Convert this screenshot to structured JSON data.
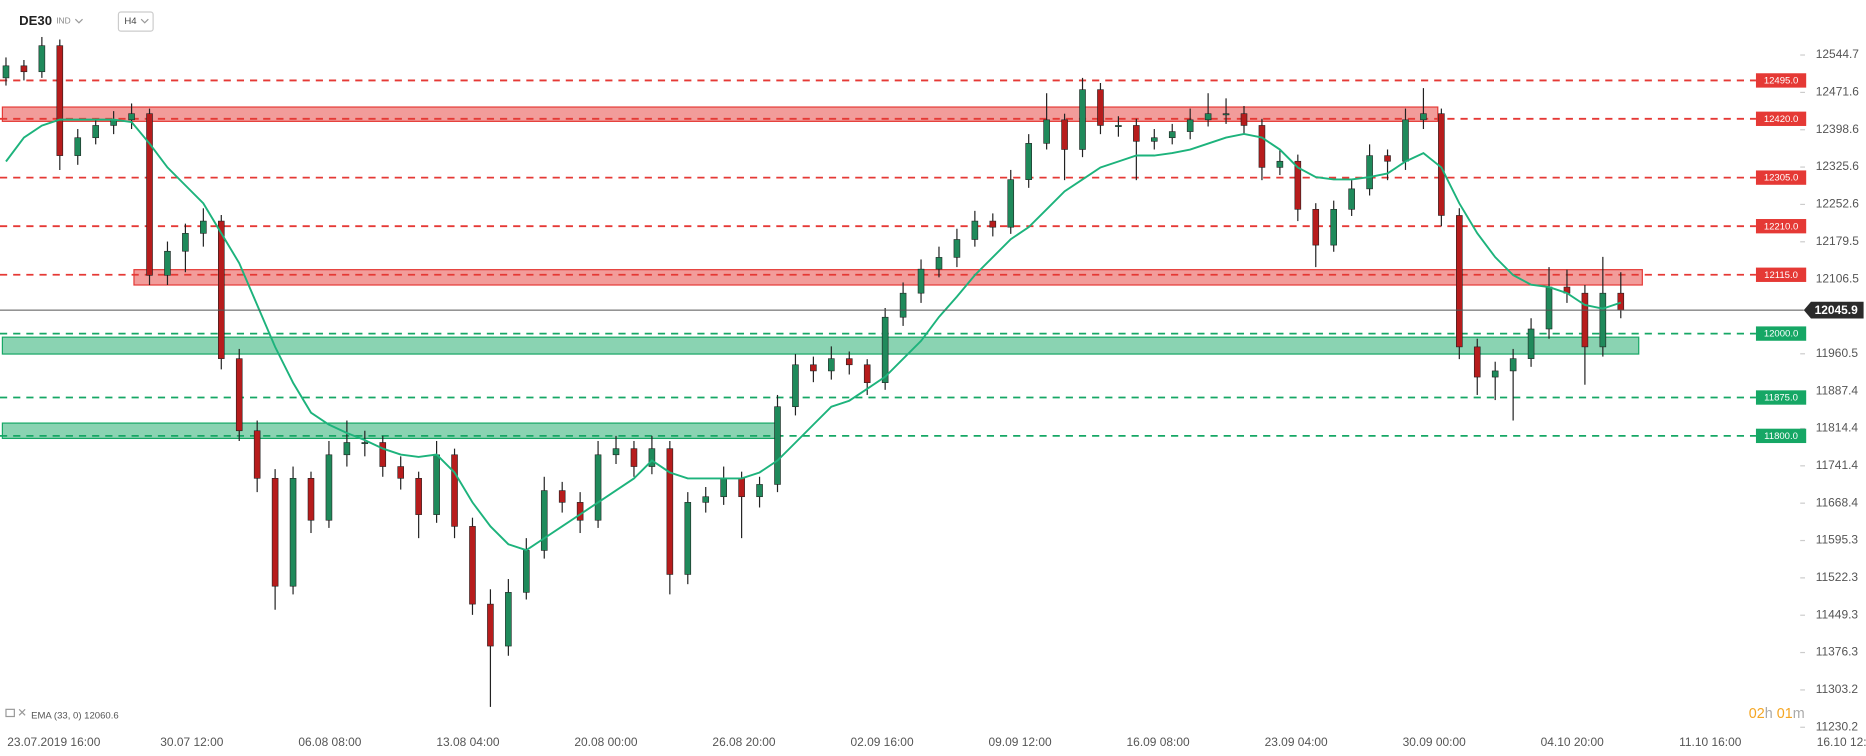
{
  "header": {
    "symbol": "DE30",
    "market": "IND",
    "timeframe": "H4"
  },
  "chart_data": {
    "type": "candlestick",
    "up_color": "#1f8a5b",
    "down_color": "#b71c1c",
    "candles": [
      [
        12500,
        12540,
        12485,
        12523.6
      ],
      [
        12523.6,
        12535,
        12495,
        12512
      ],
      [
        12512,
        12580,
        12500,
        12563
      ],
      [
        12563,
        12575,
        12320,
        12348
      ],
      [
        12348,
        12400,
        12330,
        12383
      ],
      [
        12383,
        12420,
        12370,
        12407
      ],
      [
        12407,
        12435,
        12390,
        12418
      ],
      [
        12418,
        12450,
        12400,
        12430
      ],
      [
        12430,
        12440,
        12095,
        12114
      ],
      [
        12114,
        12180,
        12095,
        12161
      ],
      [
        12161,
        12215,
        12120,
        12196
      ],
      [
        12196,
        12245,
        12170,
        12220
      ],
      [
        12220,
        12232,
        11930,
        11951
      ],
      [
        11951,
        11970,
        11790,
        11810
      ],
      [
        11810,
        11830,
        11690,
        11717
      ],
      [
        11717,
        11735,
        11460,
        11506
      ],
      [
        11506,
        11740,
        11490,
        11717
      ],
      [
        11717,
        11730,
        11610,
        11635
      ],
      [
        11635,
        11790,
        11620,
        11763
      ],
      [
        11763,
        11830,
        11740,
        11787
      ],
      [
        11787,
        11810,
        11760,
        11787
      ],
      [
        11787,
        11800,
        11720,
        11740
      ],
      [
        11740,
        11760,
        11695,
        11717
      ],
      [
        11717,
        11730,
        11600,
        11646
      ],
      [
        11646,
        11790,
        11630,
        11763
      ],
      [
        11763,
        11775,
        11600,
        11623
      ],
      [
        11623,
        11640,
        11450,
        11471
      ],
      [
        11471,
        11500,
        11270,
        11389
      ],
      [
        11389,
        11520,
        11370,
        11494
      ],
      [
        11494,
        11600,
        11480,
        11576
      ],
      [
        11576,
        11720,
        11560,
        11693
      ],
      [
        11693,
        11710,
        11650,
        11670
      ],
      [
        11670,
        11690,
        11610,
        11635
      ],
      [
        11635,
        11790,
        11620,
        11763
      ],
      [
        11763,
        11800,
        11745,
        11775
      ],
      [
        11775,
        11790,
        11720,
        11740
      ],
      [
        11740,
        11800,
        11725,
        11775
      ],
      [
        11775,
        11790,
        11490,
        11529
      ],
      [
        11529,
        11690,
        11510,
        11670
      ],
      [
        11670,
        11700,
        11650,
        11681
      ],
      [
        11681,
        11740,
        11665,
        11717
      ],
      [
        11717,
        11730,
        11600,
        11681
      ],
      [
        11681,
        11720,
        11660,
        11705
      ],
      [
        11705,
        11880,
        11690,
        11857
      ],
      [
        11857,
        11960,
        11840,
        11939
      ],
      [
        11939,
        11955,
        11905,
        11927
      ],
      [
        11927,
        11975,
        11910,
        11951
      ],
      [
        11951,
        11965,
        11920,
        11939
      ],
      [
        11939,
        11950,
        11880,
        11904
      ],
      [
        11904,
        12050,
        11890,
        12032
      ],
      [
        12032,
        12100,
        12015,
        12079
      ],
      [
        12079,
        12145,
        12060,
        12126
      ],
      [
        12126,
        12170,
        12110,
        12149
      ],
      [
        12149,
        12205,
        12130,
        12184
      ],
      [
        12184,
        12240,
        12170,
        12220
      ],
      [
        12220,
        12235,
        12190,
        12208
      ],
      [
        12208,
        12320,
        12195,
        12301
      ],
      [
        12301,
        12390,
        12285,
        12372
      ],
      [
        12372,
        12470,
        12360,
        12418
      ],
      [
        12418,
        12430,
        12300,
        12360
      ],
      [
        12360,
        12500,
        12345,
        12477
      ],
      [
        12477,
        12490,
        12390,
        12407
      ],
      [
        12407,
        12425,
        12385,
        12407
      ],
      [
        12407,
        12420,
        12300,
        12376
      ],
      [
        12376,
        12400,
        12360,
        12383
      ],
      [
        12383,
        12410,
        12370,
        12395
      ],
      [
        12395,
        12440,
        12380,
        12418
      ],
      [
        12418,
        12470,
        12405,
        12430
      ],
      [
        12430,
        12460,
        12410,
        12430
      ],
      [
        12430,
        12445,
        12390,
        12407
      ],
      [
        12407,
        12420,
        12300,
        12325
      ],
      [
        12325,
        12360,
        12310,
        12337
      ],
      [
        12337,
        12350,
        12220,
        12243
      ],
      [
        12243,
        12255,
        12130,
        12173
      ],
      [
        12173,
        12260,
        12160,
        12243
      ],
      [
        12243,
        12300,
        12230,
        12283
      ],
      [
        12283,
        12370,
        12270,
        12348
      ],
      [
        12348,
        12360,
        12300,
        12337
      ],
      [
        12337,
        12440,
        12320,
        12418
      ],
      [
        12418,
        12480,
        12400,
        12430
      ],
      [
        12430,
        12440,
        12210,
        12231
      ],
      [
        12231,
        12245,
        11950,
        11974
      ],
      [
        11974,
        11990,
        11880,
        11915
      ],
      [
        11915,
        11945,
        11870,
        11927
      ],
      [
        11927,
        11970,
        11830,
        11951
      ],
      [
        11951,
        12030,
        11935,
        12009
      ],
      [
        12009,
        12130,
        11990,
        12091
      ],
      [
        12091,
        12125,
        12060,
        12079
      ],
      [
        12079,
        12095,
        11900,
        11974
      ],
      [
        11974,
        12150,
        11955,
        12079
      ],
      [
        12079,
        12120,
        12030,
        12045.9
      ]
    ],
    "ema": {
      "name": "EMA (33, 0)",
      "color": "#1db37c",
      "values": [
        12336.5,
        12383.3,
        12406.7,
        12418.4,
        12418.4,
        12418.4,
        12418.4,
        12413.7,
        12371.6,
        12324.9,
        12289.8,
        12254.7,
        12196.2,
        12137.7,
        12055.9,
        11974.0,
        11903.9,
        11845.4,
        11822.0,
        11805.6,
        11791.6,
        11775.2,
        11763.5,
        11758.8,
        11763.5,
        11728.4,
        11669.9,
        11623.1,
        11588.1,
        11576.4,
        11599.8,
        11623.1,
        11646.5,
        11669.9,
        11693.3,
        11716.7,
        11751.8,
        11728.4,
        11716.7,
        11716.7,
        11716.7,
        11716.7,
        11728.4,
        11751.8,
        11786.8,
        11822.0,
        11857.0,
        11868.7,
        11892.1,
        11915.5,
        11950.6,
        11985.7,
        12032.5,
        12072.2,
        12114.3,
        12149.4,
        12184.5,
        12208.1,
        12243.0,
        12278.1,
        12301.4,
        12324.9,
        12336.5,
        12348.2,
        12348.2,
        12352.9,
        12359.9,
        12371.6,
        12383.3,
        12390.3,
        12383.3,
        12359.9,
        12324.9,
        12306.1,
        12301.4,
        12301.4,
        12306.1,
        12313.1,
        12336.5,
        12352.9,
        12324.9,
        12254.7,
        12196.2,
        12149.4,
        12114.3,
        12095.6,
        12090.9,
        12079.2,
        12055.9,
        12048.8,
        12060.6
      ]
    },
    "ylim": [
      11213.8,
      12582.1
    ],
    "yticks": [
      12544.7,
      12471.6,
      12398.6,
      12325.6,
      12252.6,
      12179.5,
      12106.5,
      11960.5,
      11887.4,
      11814.4,
      11741.4,
      11668.4,
      11595.3,
      11522.3,
      11449.3,
      11376.3,
      11303.2,
      11230.2
    ],
    "levels": [
      {
        "value": 12495,
        "label": "12495.0",
        "color": "#e53935"
      },
      {
        "value": 12420,
        "label": "12420.0",
        "color": "#e53935"
      },
      {
        "value": 12305,
        "label": "12305.0",
        "color": "#e53935"
      },
      {
        "value": 12210,
        "label": "12210.0",
        "color": "#e53935"
      },
      {
        "value": 12115,
        "label": "12115.0",
        "color": "#e53935"
      },
      {
        "value": 12000,
        "label": "12000.0",
        "color": "#16a765"
      },
      {
        "value": 11875,
        "label": "11875.0",
        "color": "#16a765"
      },
      {
        "value": 11800,
        "label": "11800.0",
        "color": "#16a765"
      }
    ],
    "zones": [
      {
        "from": 12415,
        "to": 12443,
        "color": "#e53935"
      },
      {
        "from": 12095,
        "to": 12125,
        "color": "#e53935"
      },
      {
        "from": 11960,
        "to": 11993,
        "color": "#16a765"
      },
      {
        "from": 11795,
        "to": 11825,
        "color": "#16a765"
      }
    ],
    "x_labels": [
      "23.07.2019 16:00",
      "30.07 12:00",
      "06.08 08:00",
      "13.08 04:00",
      "20.08 00:00",
      "26.08 20:00",
      "02.09 16:00",
      "09.09 12:00",
      "16.09 08:00",
      "23.09 04:00",
      "30.09 00:00",
      "04.10 20:00",
      "11.10 16:00",
      "16.10 12:00"
    ]
  },
  "countdown": [
    "02",
    "h",
    "01",
    "m"
  ]
}
